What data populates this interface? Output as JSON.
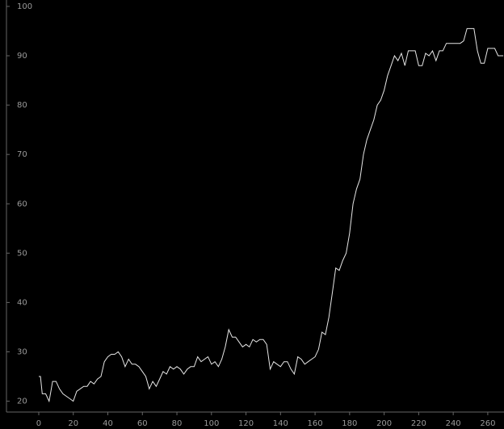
{
  "chart_data": {
    "type": "line",
    "color": "#e6e6e6",
    "x": [
      0,
      1,
      2,
      4,
      6,
      7,
      8,
      10,
      12,
      14,
      16,
      18,
      20,
      22,
      24,
      26,
      28,
      30,
      32,
      34,
      36,
      38,
      40,
      42,
      44,
      46,
      48,
      50,
      52,
      54,
      56,
      58,
      60,
      62,
      64,
      66,
      68,
      70,
      72,
      74,
      76,
      78,
      80,
      82,
      84,
      86,
      88,
      90,
      92,
      94,
      96,
      98,
      100,
      102,
      104,
      106,
      108,
      110,
      112,
      114,
      116,
      118,
      120,
      122,
      124,
      126,
      128,
      130,
      132,
      134,
      136,
      138,
      140,
      142,
      144,
      146,
      148,
      150,
      152,
      154,
      156,
      158,
      160,
      162,
      164,
      166,
      168,
      170,
      172,
      174,
      176,
      178,
      180,
      182,
      184,
      186,
      188,
      190,
      192,
      194,
      196,
      198,
      200,
      202,
      204,
      206,
      208,
      210,
      212,
      214,
      216,
      218,
      220,
      222,
      224,
      226,
      228,
      230,
      232,
      234,
      236,
      238,
      240,
      242,
      244,
      246,
      248,
      252,
      254,
      256,
      258,
      260,
      264,
      266,
      269
    ],
    "values": [
      25,
      25,
      21.5,
      21.5,
      20,
      22,
      24,
      24,
      22.5,
      21.5,
      21,
      20.5,
      20,
      22,
      22.5,
      23,
      23,
      24,
      23.5,
      24.5,
      25,
      28,
      29,
      29.5,
      29.5,
      30,
      29,
      27,
      28.5,
      27.5,
      27.5,
      27,
      26,
      25,
      22.5,
      24,
      23,
      24.5,
      26,
      25.5,
      27,
      26.5,
      27,
      26.5,
      25.5,
      26.5,
      27,
      27,
      29,
      28,
      28.5,
      29,
      27.5,
      28,
      27,
      28.5,
      31,
      34.5,
      33,
      33,
      32,
      31,
      31.5,
      31,
      32.5,
      32,
      32.5,
      32.5,
      31.5,
      26.5,
      28,
      27.5,
      27,
      28,
      28,
      26.5,
      25.5,
      29,
      28.5,
      27.5,
      28,
      28.5,
      29,
      30.5,
      34,
      33.5,
      37,
      42,
      47,
      46.5,
      48.5,
      50,
      54,
      60,
      63,
      65,
      70,
      73,
      75,
      77,
      80,
      81,
      83,
      86,
      88,
      90,
      89,
      90.5,
      88,
      91,
      91,
      91,
      88,
      88,
      90.5,
      90,
      91,
      89,
      91,
      91,
      92.5,
      92.5,
      92.5,
      92.5,
      92.5,
      93,
      95.5,
      95.5,
      91,
      88.5,
      88.5,
      91.5,
      91.5,
      90,
      90
    ],
    "xlim": [
      -18.7,
      269.4
    ],
    "ylim": [
      17.8,
      101.3
    ],
    "xticks": [
      0,
      20,
      40,
      60,
      80,
      100,
      120,
      140,
      160,
      180,
      200,
      220,
      240,
      260
    ],
    "yticks": [
      20,
      30,
      40,
      50,
      60,
      70,
      80,
      90,
      100
    ]
  }
}
